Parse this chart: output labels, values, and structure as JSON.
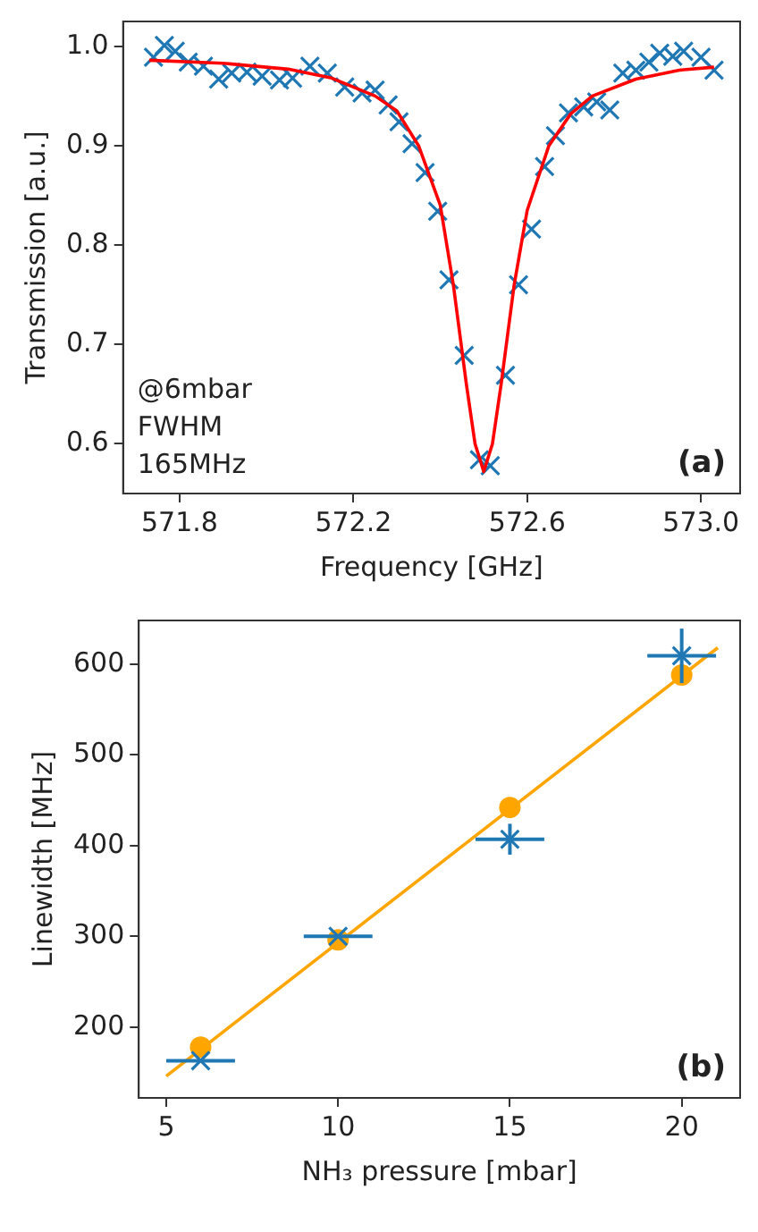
{
  "chart_data": [
    {
      "type": "scatter",
      "xlabel": "Frequency [GHz]",
      "ylabel": "Transmission [a.u.]",
      "xlim": [
        571.67,
        573.09
      ],
      "ylim": [
        0.55,
        1.025
      ],
      "xticks": [
        571.8,
        572.2,
        572.6,
        {
          "value": 573,
          "label": "573.0"
        }
      ],
      "yticks": [
        0.6,
        0.7,
        0.8,
        0.9,
        {
          "value": 1,
          "label": "1.0"
        }
      ],
      "grid": false,
      "legend": false,
      "annotations": [
        "@6mbar",
        "FWHM",
        "165MHz",
        "(a)"
      ],
      "series": [
        {
          "marker": "cross",
          "color": "#1f77b4",
          "x": [
            571.74,
            571.765,
            571.79,
            571.82,
            571.855,
            571.89,
            571.92,
            571.955,
            571.99,
            572.03,
            572.06,
            572.1,
            572.14,
            572.18,
            572.22,
            572.25,
            572.28,
            572.305,
            572.335,
            572.365,
            572.394,
            572.42,
            572.455,
            572.49,
            572.515,
            572.55,
            572.58,
            572.61,
            572.64,
            572.665,
            572.695,
            572.73,
            572.76,
            572.79,
            572.82,
            572.85,
            572.88,
            572.905,
            572.935,
            572.96,
            573.0,
            573.03
          ],
          "values": [
            0.989,
            1.001,
            0.995,
            0.984,
            0.98,
            0.967,
            0.973,
            0.974,
            0.97,
            0.966,
            0.968,
            0.98,
            0.973,
            0.959,
            0.953,
            0.956,
            0.941,
            0.924,
            0.902,
            0.873,
            0.834,
            0.765,
            0.689,
            0.584,
            0.578,
            0.669,
            0.76,
            0.816,
            0.879,
            0.91,
            0.933,
            0.939,
            0.944,
            0.936,
            0.973,
            0.976,
            0.984,
            0.993,
            0.99,
            0.995,
            0.989,
            0.976
          ]
        },
        {
          "type": "line",
          "marker": "none",
          "line_style": "solid",
          "color": "#ff0000",
          "x": [
            571.73,
            571.9,
            572.05,
            572.15,
            572.25,
            572.3,
            572.35,
            572.4,
            572.43,
            572.46,
            572.48,
            572.5,
            572.52,
            572.54,
            572.57,
            572.6,
            572.65,
            572.7,
            572.75,
            572.85,
            572.95,
            573.03
          ],
          "values": [
            0.986,
            0.983,
            0.977,
            0.968,
            0.95,
            0.935,
            0.9,
            0.84,
            0.76,
            0.66,
            0.6,
            0.572,
            0.6,
            0.66,
            0.76,
            0.835,
            0.9,
            0.932,
            0.95,
            0.967,
            0.976,
            0.979
          ]
        }
      ]
    },
    {
      "type": "scatter",
      "xlabel": "NH₃ pressure [mbar]",
      "ylabel": "Linewidth [MHz]",
      "xlim": [
        4.2,
        21.7
      ],
      "ylim": [
        122,
        648
      ],
      "xticks": [
        5,
        10,
        15,
        20
      ],
      "yticks": [
        200,
        300,
        400,
        500,
        600
      ],
      "grid": false,
      "legend": false,
      "annotations": [
        "(b)"
      ],
      "series": [
        {
          "type": "line",
          "marker": "none",
          "line_style": "solid",
          "color": "#ffa500",
          "x": [
            5,
            21.05
          ],
          "values": [
            146,
            618
          ]
        },
        {
          "marker": "circle",
          "color": "#ffa500",
          "x": [
            6,
            10,
            15,
            20
          ],
          "values": [
            178,
            296,
            442,
            588
          ]
        },
        {
          "marker": "cross",
          "color": "#1f77b4",
          "x": [
            6,
            10,
            15,
            20
          ],
          "values": [
            163,
            300,
            407,
            609
          ],
          "xerrors": [
            1,
            1,
            1,
            1
          ],
          "errors": [
            null,
            null,
            17,
            30
          ]
        }
      ]
    }
  ]
}
